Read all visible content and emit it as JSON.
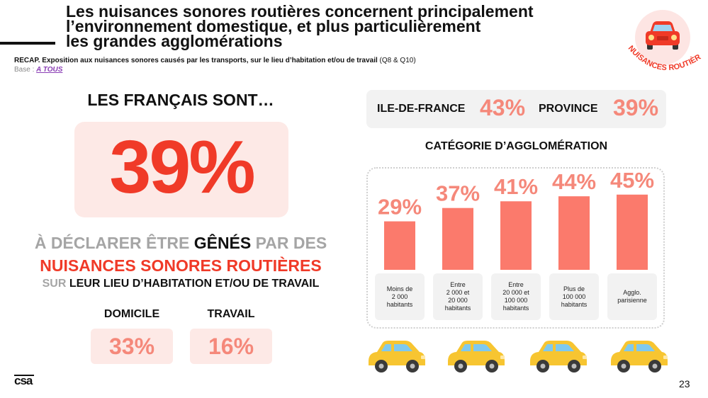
{
  "header": {
    "title_line1": "Les nuisances sonores routières concernent principalement",
    "title_line2": "l’environnement domestique, et plus particulièrement",
    "title_line3": "les grandes agglomérations",
    "recap_bold": "RECAP. Exposition aux nuisances sonores causés par les transports, sur le lieu d’habitation et/ou de travail",
    "recap_ref": " (Q8 & Q10)",
    "base_prefix": "Base : ",
    "base_link": "A TOUS"
  },
  "badge": {
    "text": "NUISANCES ROUTIÈRES",
    "icon": "car-icon",
    "color": "#f03a28"
  },
  "left": {
    "heading": "LES FRANÇAIS SONT…",
    "big_value": "39%",
    "line1_a": "À DÉCLARER ÊTRE ",
    "line1_b": "GÊNÉS",
    "line1_c": " PAR DES",
    "line2": "NUISANCES SONORES ROUTIÈRES",
    "line3_a": "SUR",
    "line3_b": " LEUR LIEU D’HABITATION ET/OU DE TRAVAIL",
    "domicile_label": "DOMICILE",
    "domicile_value": "33%",
    "travail_label": "TRAVAIL",
    "travail_value": "16%"
  },
  "regions": {
    "idf_label": "ILE-DE-FRANCE",
    "idf_value": "43%",
    "province_label": "PROVINCE",
    "province_value": "39%"
  },
  "chart_data": {
    "type": "bar",
    "title": "CATÉGORIE D’AGGLOMÉRATION",
    "categories": [
      "Moins de\n2 000\nhabitants",
      "Entre\n2 000 et\n20 000\nhabitants",
      "Entre\n20 000 et\n100 000\nhabitants",
      "Plus de\n100 000\nhabitants",
      "Agglo.\nparisienne"
    ],
    "values": [
      29,
      37,
      41,
      44,
      45
    ],
    "value_labels": [
      "29%",
      "37%",
      "41%",
      "44%",
      "45%"
    ],
    "bar_color": "#fb7a6c",
    "label_color": "#f5887a",
    "xlabel": "",
    "ylabel": "",
    "ylim": [
      0,
      50
    ],
    "grid": false
  },
  "decor": {
    "car_icon": "car-icon",
    "car_color": "#f7c531"
  },
  "footer": {
    "logo": "csa",
    "page": "23"
  }
}
